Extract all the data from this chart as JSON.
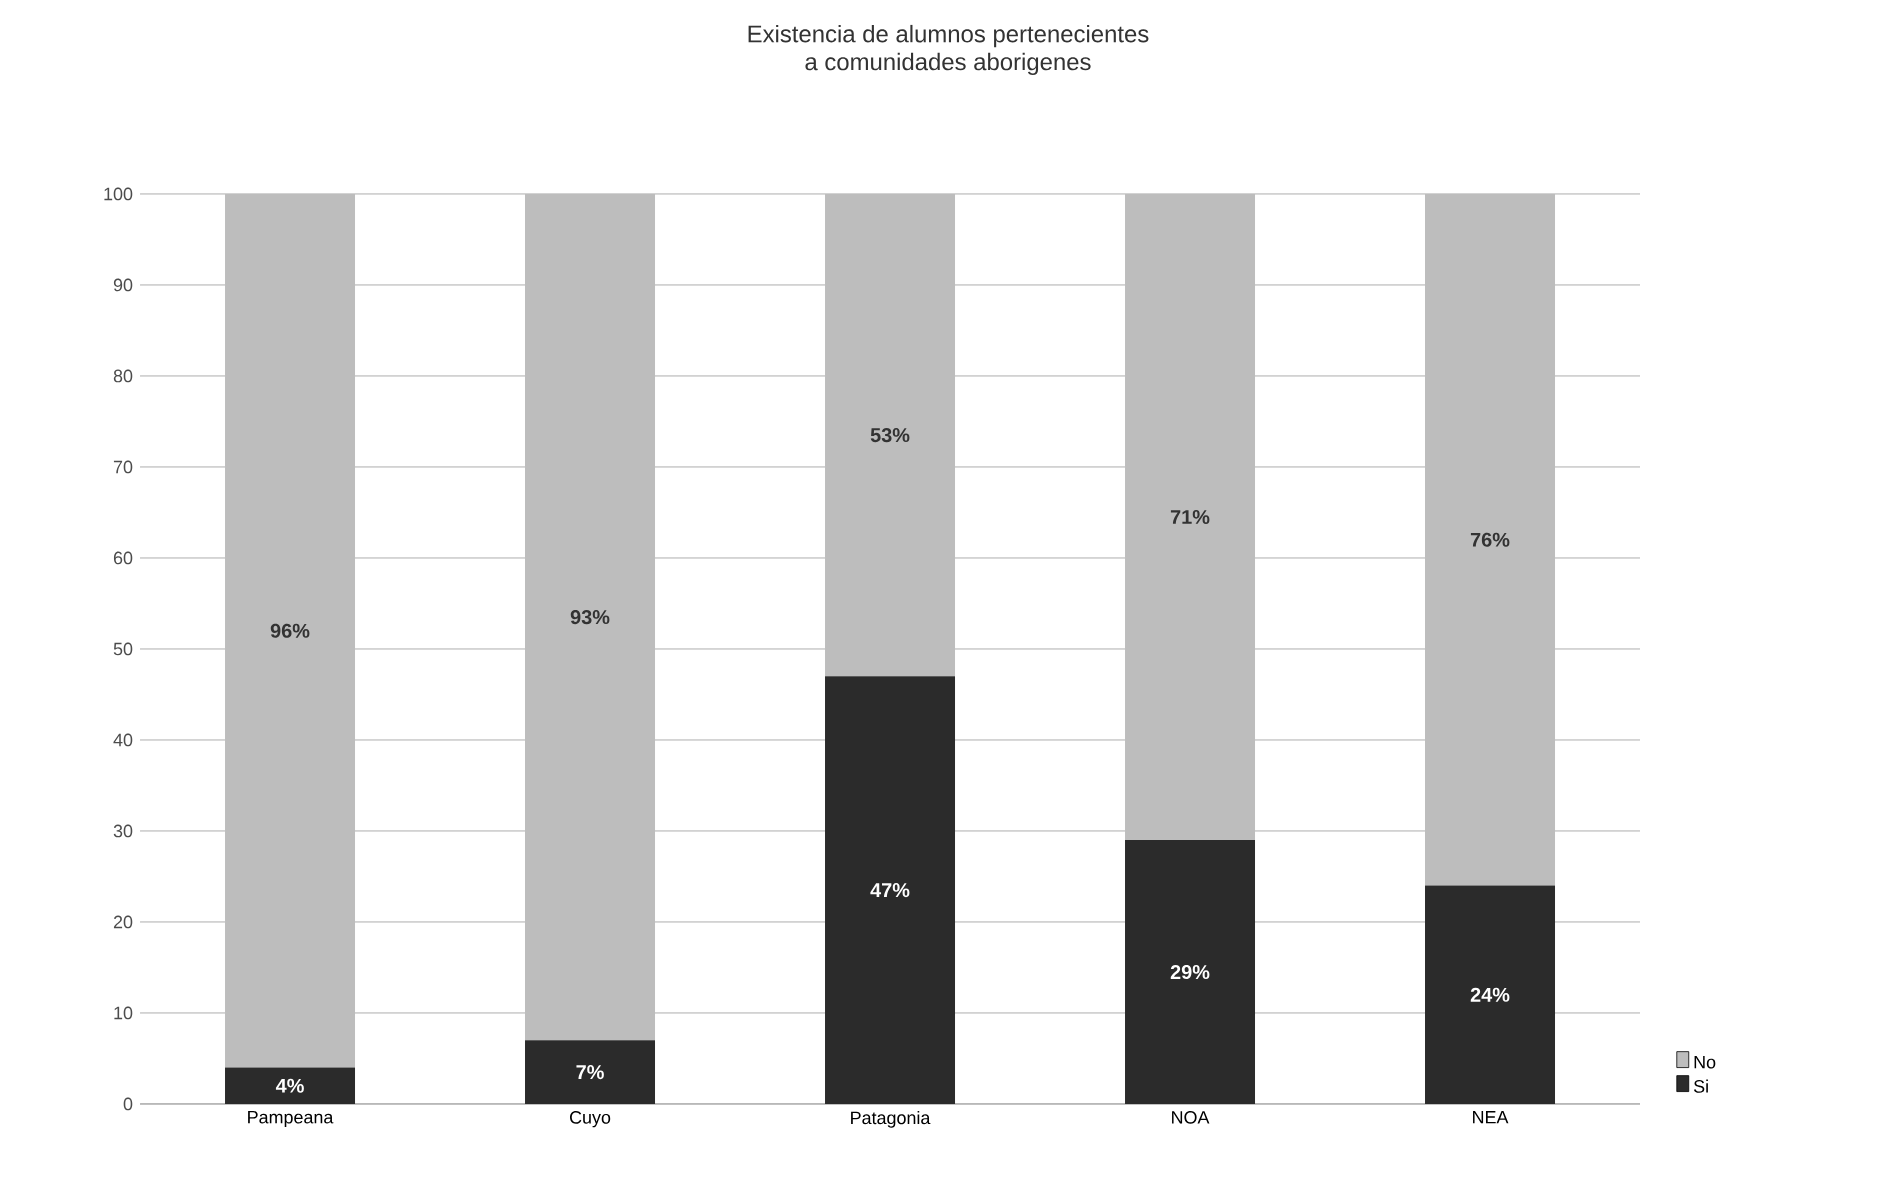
{
  "chart_data": {
    "type": "bar",
    "stacked": true,
    "title": "Existencia de alumnos pertenecientes\na comunidades aborigenes",
    "categories": [
      "Pampeana",
      "Cuyo",
      "Patagonia",
      "NOA",
      "NEA"
    ],
    "series": [
      {
        "name": "Si",
        "color": "#2b2b2b",
        "values": [
          4,
          7,
          47,
          29,
          24
        ],
        "value_labels": [
          "4%",
          "7%",
          "47%",
          "29%",
          "24%"
        ]
      },
      {
        "name": "No",
        "color": "#bdbdbd",
        "values": [
          96,
          93,
          53,
          71,
          76
        ],
        "value_labels": [
          "96%",
          "93%",
          "53%",
          "71%",
          "76%"
        ]
      }
    ],
    "ylim": [
      0,
      100
    ],
    "yticks": [
      0,
      10,
      20,
      30,
      40,
      50,
      60,
      70,
      80,
      90,
      100
    ],
    "grid": "y",
    "legend": "bottom right"
  }
}
